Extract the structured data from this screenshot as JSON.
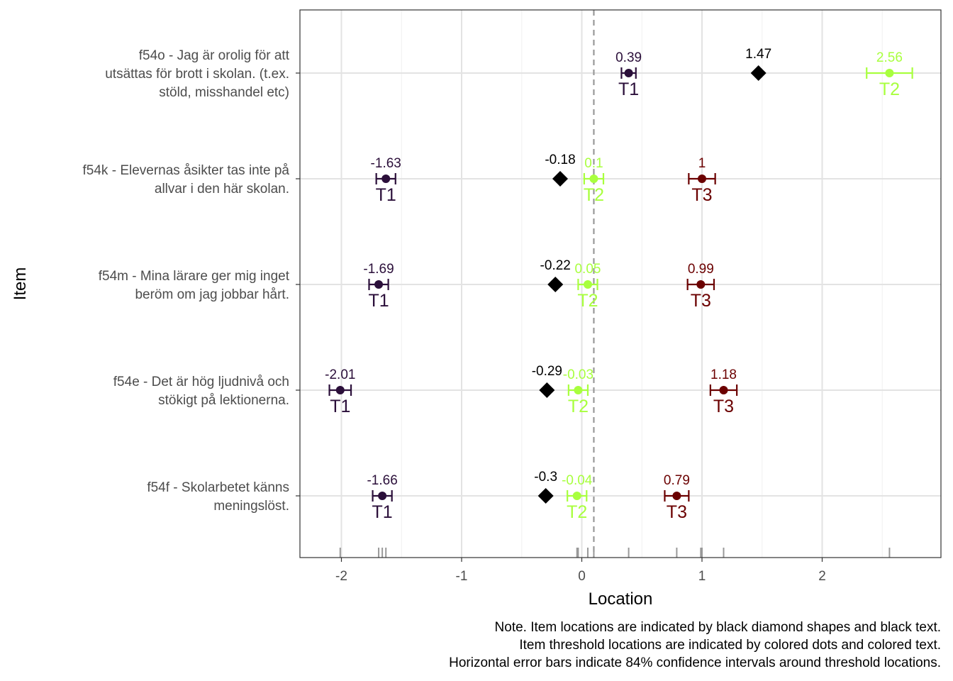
{
  "chart_data": {
    "type": "scatter",
    "xlabel": "Location",
    "ylabel": "Item",
    "xlim": [
      -2.34,
      2.9
    ],
    "xticks": [
      -2,
      -1,
      0,
      1,
      2
    ],
    "x_tick_labels": [
      "-2",
      "-1",
      "0",
      "1",
      "2"
    ],
    "reference_line_x": 0.1,
    "grid": true,
    "colors": {
      "T1": "#2b0f3a",
      "T2": "#a8ff3e",
      "T3": "#6b0000",
      "item": "#000000",
      "refline": "#999999"
    },
    "items": [
      {
        "label_lines": [
          "f54o - Jag är orolig för att",
          "utsättas för brott i skolan. (t.ex.",
          "stöld, misshandel etc)"
        ],
        "location": 1.47,
        "location_label": "1.47",
        "thresholds": [
          {
            "name": "T1",
            "value": 0.39,
            "label": "0.39",
            "ci": [
              0.33,
              0.45
            ]
          },
          {
            "name": "T2",
            "value": 2.56,
            "label": "2.56",
            "ci": [
              2.37,
              2.75
            ]
          }
        ]
      },
      {
        "label_lines": [
          "f54k - Elevernas åsikter tas inte på",
          "allvar i den här skolan."
        ],
        "location": -0.18,
        "location_label": "-0.18",
        "thresholds": [
          {
            "name": "T1",
            "value": -1.63,
            "label": "-1.63",
            "ci": [
              -1.71,
              -1.55
            ]
          },
          {
            "name": "T2",
            "value": 0.1,
            "label": "0.1",
            "ci": [
              0.02,
              0.18
            ]
          },
          {
            "name": "T3",
            "value": 1.0,
            "label": "1",
            "ci": [
              0.89,
              1.11
            ]
          }
        ]
      },
      {
        "label_lines": [
          "f54m - Mina lärare ger mig inget",
          "beröm om jag jobbar hårt."
        ],
        "location": -0.22,
        "location_label": "-0.22",
        "thresholds": [
          {
            "name": "T1",
            "value": -1.69,
            "label": "-1.69",
            "ci": [
              -1.77,
              -1.61
            ]
          },
          {
            "name": "T2",
            "value": 0.05,
            "label": "0.05",
            "ci": [
              -0.03,
              0.13
            ]
          },
          {
            "name": "T3",
            "value": 0.99,
            "label": "0.99",
            "ci": [
              0.88,
              1.1
            ]
          }
        ]
      },
      {
        "label_lines": [
          "f54e - Det är hög ljudnivå och",
          "stökigt på lektionerna."
        ],
        "location": -0.29,
        "location_label": "-0.29",
        "thresholds": [
          {
            "name": "T1",
            "value": -2.01,
            "label": "-2.01",
            "ci": [
              -2.1,
              -1.92
            ]
          },
          {
            "name": "T2",
            "value": -0.03,
            "label": "-0.03",
            "ci": [
              -0.11,
              0.05
            ]
          },
          {
            "name": "T3",
            "value": 1.18,
            "label": "1.18",
            "ci": [
              1.07,
              1.29
            ]
          }
        ]
      },
      {
        "label_lines": [
          "f54f - Skolarbetet känns",
          "meningslöst."
        ],
        "location": -0.3,
        "location_label": "-0.3",
        "thresholds": [
          {
            "name": "T1",
            "value": -1.66,
            "label": "-1.66",
            "ci": [
              -1.74,
              -1.58
            ]
          },
          {
            "name": "T2",
            "value": -0.04,
            "label": "-0.04",
            "ci": [
              -0.12,
              0.04
            ]
          },
          {
            "name": "T3",
            "value": 0.79,
            "label": "0.79",
            "ci": [
              0.69,
              0.89
            ]
          }
        ]
      }
    ],
    "rug_values": [
      -2.01,
      -1.69,
      -1.66,
      -1.63,
      -0.04,
      -0.03,
      0.05,
      0.1,
      0.39,
      0.79,
      0.99,
      1.0,
      1.18,
      2.56
    ],
    "note_lines": [
      "Note. Item locations are indicated by black diamond shapes and black text.",
      "Item threshold locations are indicated by colored dots and colored text.",
      "Horizontal error bars indicate 84% confidence intervals around threshold locations."
    ]
  }
}
